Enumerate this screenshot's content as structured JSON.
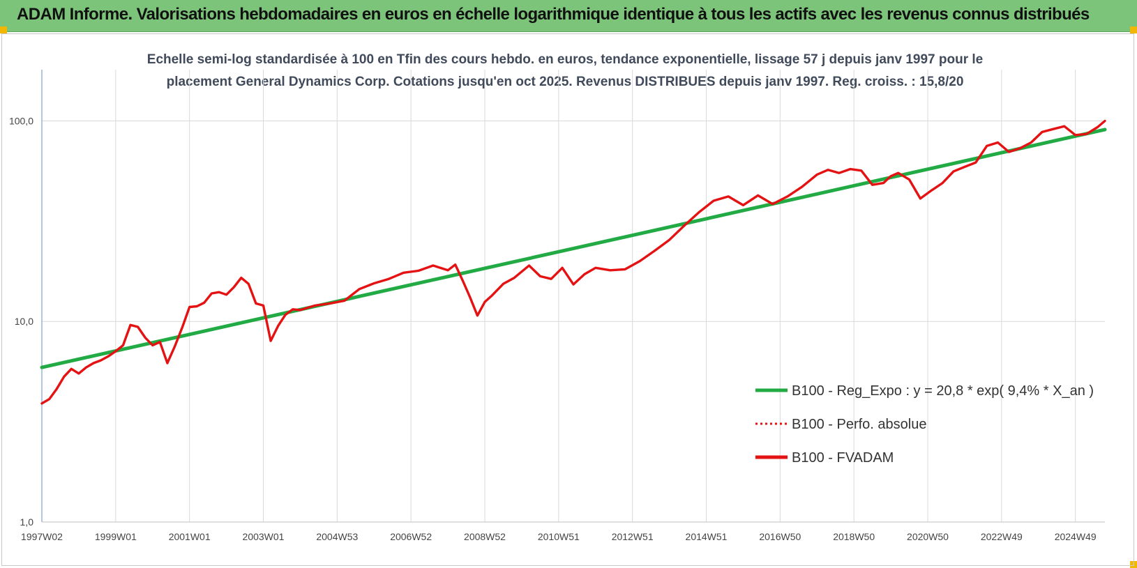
{
  "header": {
    "title": "ADAM Informe. Valorisations hebdomadaires en euros en échelle logarithmique identique à tous les actifs avec les revenus connus distribués"
  },
  "colors": {
    "banner": "#7cc47a",
    "regression": "#22aa44",
    "fvadam": "#e41212",
    "perfo": "#e41212",
    "grid": "#d9d9d9",
    "axis": "#7f9fd0"
  },
  "chart_data": {
    "type": "line",
    "title_lines": [
      "Echelle semi-log standardisée à 100 en Tfin des cours hebdo. en euros, tendance exponentielle, lissage 57 j depuis janv 1997 pour le",
      "placement General Dynamics Corp. Cotations jusqu'en oct 2025. Revenus DISTRIBUES depuis janv 1997. Reg. croiss. : 15,8/20"
    ],
    "y_scale": "log",
    "ylim": [
      1,
      180
    ],
    "xlim": [
      1997.0,
      2025.8
    ],
    "y_ticks": [
      {
        "value": 1,
        "label": "1,0"
      },
      {
        "value": 10,
        "label": "10,0"
      },
      {
        "value": 100,
        "label": "100,0"
      }
    ],
    "x_ticks": [
      {
        "value": 1997.0,
        "label": "1997W02"
      },
      {
        "value": 1999.0,
        "label": "1999W01"
      },
      {
        "value": 2001.0,
        "label": "2001W01"
      },
      {
        "value": 2003.0,
        "label": "2003W01"
      },
      {
        "value": 2005.0,
        "label": "2004W53"
      },
      {
        "value": 2007.0,
        "label": "2006W52"
      },
      {
        "value": 2009.0,
        "label": "2008W52"
      },
      {
        "value": 2011.0,
        "label": "2010W51"
      },
      {
        "value": 2013.0,
        "label": "2012W51"
      },
      {
        "value": 2015.0,
        "label": "2014W51"
      },
      {
        "value": 2017.0,
        "label": "2016W50"
      },
      {
        "value": 2019.0,
        "label": "2018W50"
      },
      {
        "value": 2021.0,
        "label": "2020W50"
      },
      {
        "value": 2023.0,
        "label": "2022W49"
      },
      {
        "value": 2025.0,
        "label": "2024W49"
      }
    ],
    "grid": true,
    "legend_position": "bottom-right",
    "series": [
      {
        "name": "B100 - Reg_Expo : y = 20,8 * exp( 9,4% *  X_an )",
        "style": "solid",
        "color": "#22aa44",
        "x": [
          1997.0,
          2025.8
        ],
        "y": [
          5.9,
          90.5
        ]
      },
      {
        "name": "B100 - Perfo. absolue",
        "style": "dotted",
        "color": "#e41212",
        "x": [],
        "y": []
      },
      {
        "name": "B100 - FVADAM",
        "style": "solid",
        "color": "#e41212",
        "x": [
          1997.0,
          1997.2,
          1997.4,
          1997.6,
          1997.8,
          1998.0,
          1998.2,
          1998.4,
          1998.6,
          1998.8,
          1999.0,
          1999.2,
          1999.4,
          1999.6,
          1999.8,
          2000.0,
          2000.2,
          2000.4,
          2000.6,
          2000.8,
          2001.0,
          2001.2,
          2001.4,
          2001.6,
          2001.8,
          2002.0,
          2002.2,
          2002.4,
          2002.6,
          2002.8,
          2003.0,
          2003.2,
          2003.4,
          2003.6,
          2003.8,
          2004.0,
          2004.4,
          2004.8,
          2005.2,
          2005.6,
          2006.0,
          2006.4,
          2006.8,
          2007.2,
          2007.6,
          2008.0,
          2008.2,
          2008.4,
          2008.6,
          2008.8,
          2009.0,
          2009.2,
          2009.5,
          2009.8,
          2010.2,
          2010.5,
          2010.8,
          2011.1,
          2011.4,
          2011.7,
          2012.0,
          2012.4,
          2012.8,
          2013.2,
          2013.6,
          2014.0,
          2014.4,
          2014.8,
          2015.2,
          2015.6,
          2016.0,
          2016.4,
          2016.8,
          2017.2,
          2017.6,
          2018.0,
          2018.3,
          2018.6,
          2018.9,
          2019.2,
          2019.5,
          2019.8,
          2020.0,
          2020.2,
          2020.5,
          2020.8,
          2021.1,
          2021.4,
          2021.7,
          2022.0,
          2022.3,
          2022.6,
          2022.9,
          2023.2,
          2023.5,
          2023.8,
          2024.1,
          2024.4,
          2024.7,
          2025.0,
          2025.3,
          2025.6,
          2025.8
        ],
        "y": [
          3.9,
          4.1,
          4.6,
          5.3,
          5.8,
          5.5,
          5.9,
          6.2,
          6.4,
          6.7,
          7.1,
          7.6,
          9.6,
          9.4,
          8.3,
          7.6,
          7.9,
          6.2,
          7.5,
          9.3,
          11.8,
          11.9,
          12.4,
          13.8,
          14.0,
          13.6,
          14.8,
          16.5,
          15.4,
          12.3,
          12.0,
          8.0,
          9.5,
          10.8,
          11.5,
          11.4,
          12.0,
          12.3,
          12.7,
          14.5,
          15.5,
          16.3,
          17.5,
          17.9,
          19.0,
          18.0,
          19.2,
          16.0,
          13.2,
          10.7,
          12.5,
          13.5,
          15.4,
          16.5,
          19.0,
          16.8,
          16.3,
          18.5,
          15.3,
          17.2,
          18.5,
          18.0,
          18.2,
          20.0,
          22.5,
          25.5,
          30.0,
          35.0,
          40.0,
          42.0,
          38.0,
          42.5,
          38.5,
          42.0,
          47.0,
          54.0,
          57.0,
          55.0,
          57.5,
          56.5,
          48.0,
          49.0,
          53.0,
          55.0,
          51.0,
          41.0,
          45.0,
          49.0,
          56.0,
          59.0,
          62.0,
          75.0,
          78.0,
          70.0,
          73.0,
          78.0,
          88.0,
          91.0,
          94.0,
          85.0,
          86.0,
          93.0,
          100.0
        ]
      }
    ]
  }
}
